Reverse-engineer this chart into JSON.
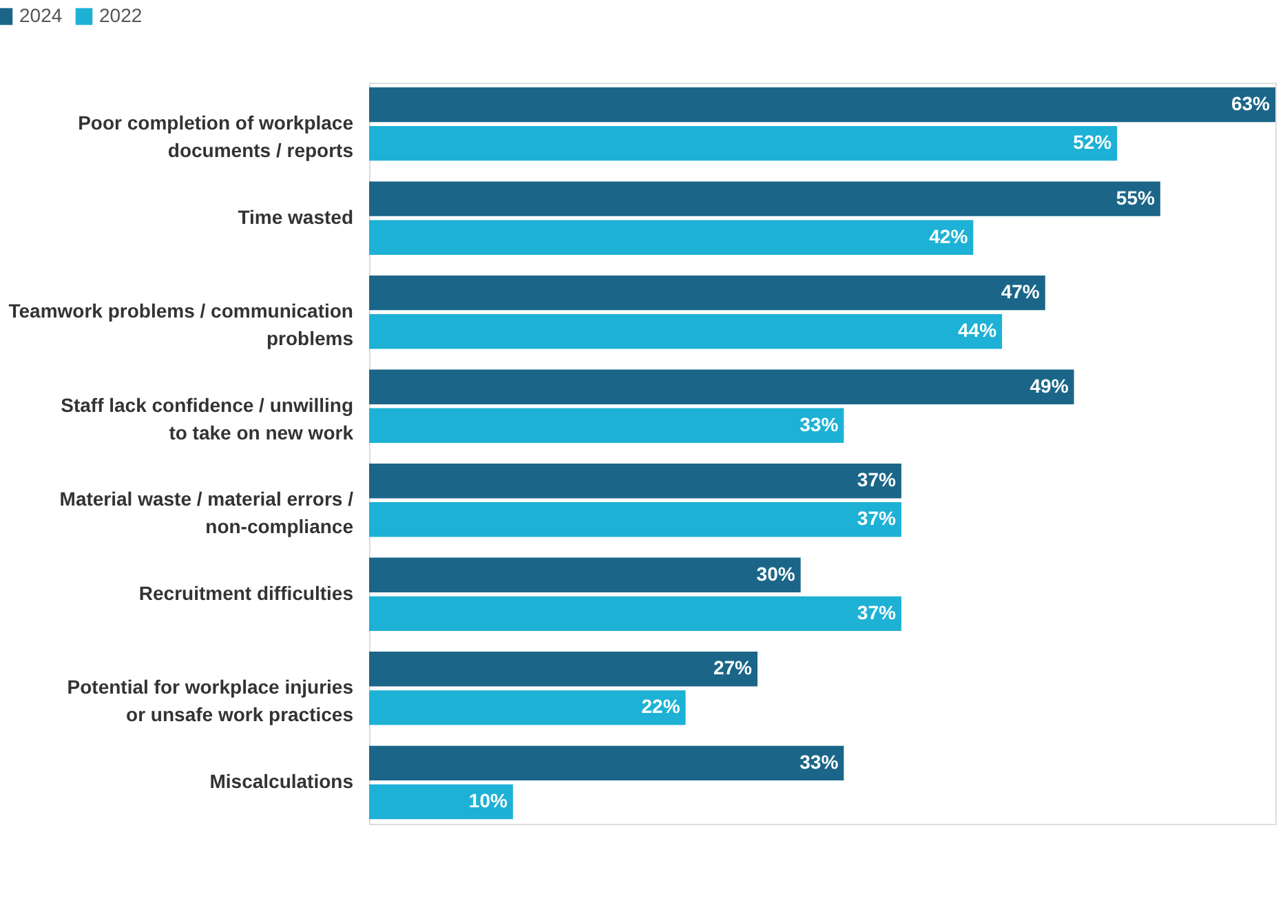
{
  "chart_data": {
    "type": "bar",
    "orientation": "horizontal",
    "legend": "top left",
    "categories": [
      "Poor completion of workplace documents / reports",
      "Time wasted",
      "Teamwork problems / communication problems",
      "Staff lack confidence / unwilling to take on new work",
      "Material waste / material errors / non-compliance",
      "Recruitment difficulties",
      "Potential for workplace injuries or unsafe work practices",
      "Miscalculations"
    ],
    "series": [
      {
        "name": "2024",
        "color": "#1b6688",
        "values": [
          63,
          55,
          47,
          49,
          37,
          30,
          27,
          33
        ],
        "value_labels": [
          "63%",
          "55%",
          "47%",
          "49%",
          "37%",
          "30%",
          "27%",
          "33%"
        ]
      },
      {
        "name": "2022",
        "color": "#1eb1d6",
        "values": [
          52,
          42,
          44,
          33,
          37,
          37,
          22,
          10
        ],
        "value_labels": [
          "52%",
          "42%",
          "44%",
          "33%",
          "37%",
          "37%",
          "22%",
          "10%"
        ]
      }
    ]
  }
}
